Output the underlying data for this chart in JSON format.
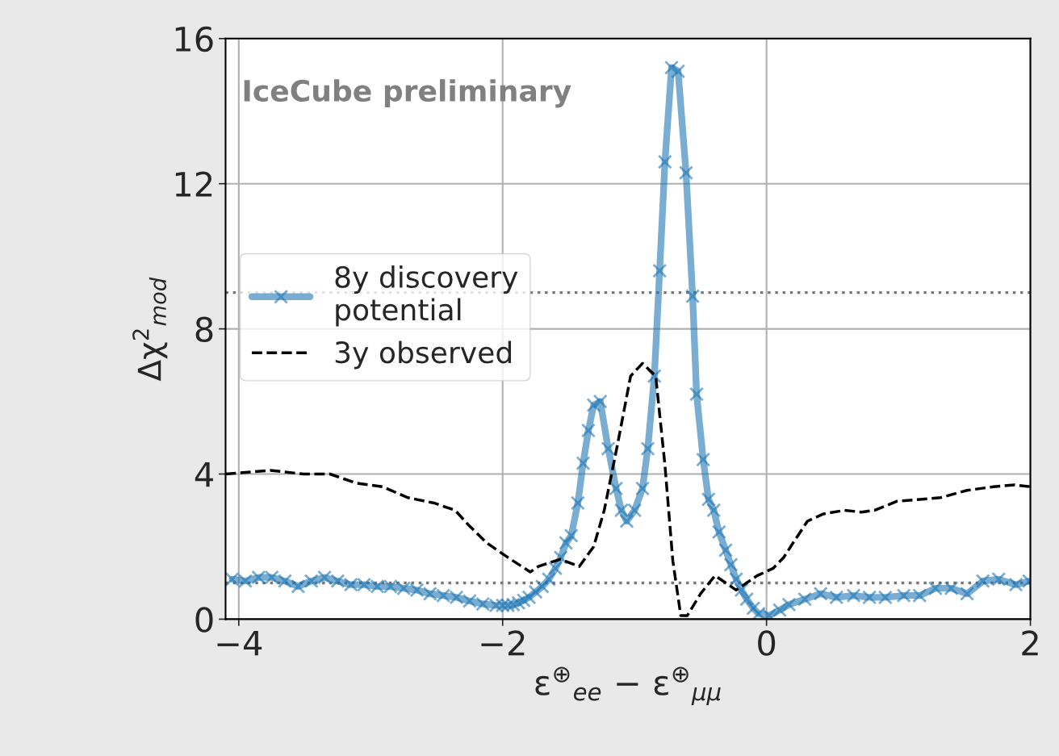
{
  "chart_data": {
    "type": "line",
    "xlabel": "ε$^{⊕}$$_{ee}$ − ε$^{⊕}$$_{μμ}$",
    "ylabel": "Δχ$^{2}$$_{mod}$",
    "annotations": [
      "IceCube preliminary"
    ],
    "xlim": [
      -4.1,
      2.0
    ],
    "ylim": [
      0,
      16
    ],
    "xticks": [
      {
        "value": -4,
        "label": "−4"
      },
      {
        "value": -2,
        "label": "−2"
      },
      0,
      2
    ],
    "yticks": [
      0,
      4,
      8,
      12,
      16
    ],
    "grid": true,
    "legend": "left",
    "ref_lines": [
      {
        "axis": "y",
        "value": 1,
        "color": "#777777",
        "line_style": "dotted"
      },
      {
        "axis": "y",
        "value": 9,
        "color": "#777777",
        "line_style": "dotted"
      }
    ],
    "series": [
      {
        "name": "8y discovery\npotential",
        "color": "#1f77b4",
        "marker": "cross",
        "line_style": "solid",
        "x": [
          -4.05,
          -3.95,
          -3.85,
          -3.75,
          -3.65,
          -3.55,
          -3.45,
          -3.35,
          -3.25,
          -3.15,
          -3.05,
          -2.95,
          -2.85,
          -2.75,
          -2.65,
          -2.55,
          -2.45,
          -2.35,
          -2.25,
          -2.15,
          -2.05,
          -2.0,
          -1.96,
          -1.92,
          -1.88,
          -1.84,
          -1.8,
          -1.75,
          -1.7,
          -1.65,
          -1.6,
          -1.56,
          -1.52,
          -1.48,
          -1.43,
          -1.39,
          -1.35,
          -1.31,
          -1.26,
          -1.2,
          -1.14,
          -1.1,
          -1.06,
          -1.0,
          -0.94,
          -0.9,
          -0.85,
          -0.81,
          -0.77,
          -0.72,
          -0.67,
          -0.61,
          -0.56,
          -0.53,
          -0.48,
          -0.44,
          -0.4,
          -0.36,
          -0.31,
          -0.27,
          -0.23,
          -0.19,
          -0.15,
          -0.1,
          -0.06,
          0.02,
          0.1,
          0.17,
          0.29,
          0.41,
          0.53,
          0.66,
          0.78,
          0.9,
          1.04,
          1.16,
          1.28,
          1.4,
          1.52,
          1.64,
          1.76,
          1.89,
          1.99
        ],
        "values": [
          1.1,
          1.05,
          1.15,
          1.15,
          1.05,
          0.9,
          1.05,
          1.15,
          1.05,
          0.95,
          0.95,
          0.9,
          0.9,
          0.85,
          0.8,
          0.7,
          0.65,
          0.6,
          0.5,
          0.42,
          0.38,
          0.38,
          0.38,
          0.4,
          0.45,
          0.52,
          0.6,
          0.75,
          0.9,
          1.1,
          1.4,
          1.7,
          2.1,
          2.3,
          3.2,
          4.3,
          5.2,
          5.9,
          6.0,
          4.7,
          3.6,
          3.0,
          2.7,
          3.0,
          3.6,
          4.7,
          6.7,
          9.6,
          12.6,
          15.2,
          15.1,
          12.3,
          8.9,
          6.2,
          4.4,
          3.3,
          3.0,
          2.4,
          1.9,
          1.5,
          1.1,
          0.8,
          0.55,
          0.3,
          0.15,
          0.1,
          0.25,
          0.4,
          0.55,
          0.7,
          0.6,
          0.65,
          0.6,
          0.6,
          0.65,
          0.65,
          0.85,
          0.85,
          0.7,
          1.05,
          1.1,
          0.95,
          1.05
        ]
      },
      {
        "name": "3y observed",
        "color": "#000000",
        "marker": "none",
        "line_style": "dashed",
        "x": [
          -4.1,
          -3.76,
          -3.51,
          -3.31,
          -3.11,
          -2.91,
          -2.72,
          -2.52,
          -2.36,
          -2.26,
          -2.12,
          -1.96,
          -1.79,
          -1.73,
          -1.65,
          -1.56,
          -1.42,
          -1.31,
          -1.23,
          -1.13,
          -1.03,
          -0.94,
          -0.84,
          -0.77,
          -0.71,
          -0.65,
          -0.6,
          -0.5,
          -0.39,
          -0.23,
          -0.07,
          0.05,
          0.13,
          0.21,
          0.31,
          0.43,
          0.59,
          0.72,
          0.82,
          0.99,
          1.16,
          1.32,
          1.52,
          1.72,
          1.88,
          2.0
        ],
        "values": [
          4.0,
          4.1,
          4.0,
          4.0,
          3.75,
          3.65,
          3.35,
          3.2,
          3.0,
          2.6,
          2.1,
          1.7,
          1.3,
          1.45,
          1.55,
          1.65,
          1.45,
          2.0,
          3.0,
          4.8,
          6.7,
          7.05,
          6.7,
          4.25,
          1.6,
          0.1,
          0.1,
          0.7,
          1.2,
          0.8,
          1.2,
          1.4,
          1.7,
          2.15,
          2.7,
          2.9,
          3.0,
          2.95,
          3.0,
          3.25,
          3.3,
          3.35,
          3.55,
          3.65,
          3.7,
          3.65
        ]
      }
    ]
  }
}
